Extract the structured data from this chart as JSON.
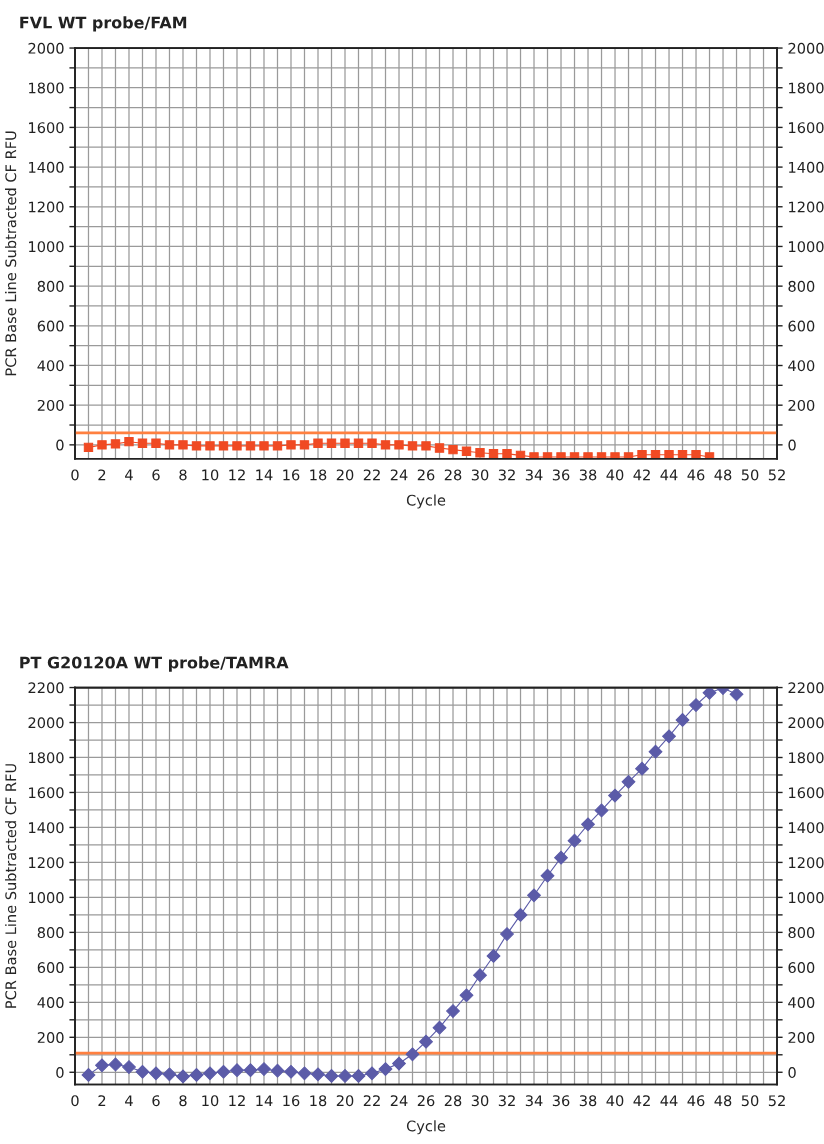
{
  "chart_data": [
    {
      "type": "line",
      "title": "FVL WT probe/FAM",
      "xlabel": "Cycle",
      "ylabel": "PCR Base Line Subtracted CF RFU",
      "x": [
        1,
        2,
        3,
        4,
        5,
        6,
        7,
        8,
        9,
        10,
        11,
        12,
        13,
        14,
        15,
        16,
        17,
        18,
        19,
        20,
        21,
        22,
        23,
        24,
        25,
        26,
        27,
        28,
        29,
        30,
        31,
        32,
        33,
        34,
        35,
        36,
        37,
        38,
        39,
        40,
        41,
        42,
        43,
        44,
        45,
        46,
        47
      ],
      "series": [
        {
          "color": "#f04a23",
          "values": [
            -13,
            0,
            5,
            16,
            8,
            8,
            0,
            0,
            -5,
            -5,
            -5,
            -5,
            -5,
            -5,
            -5,
            0,
            0,
            8,
            8,
            8,
            8,
            8,
            0,
            0,
            -5,
            -5,
            -16,
            -24,
            -32,
            -40,
            -45,
            -45,
            -53,
            -61,
            -61,
            -61,
            -61,
            -61,
            -61,
            -61,
            -61,
            -50,
            -50,
            -50,
            -50,
            -50,
            -61
          ]
        }
      ],
      "marker": "square",
      "line_style": "solid",
      "grid": true,
      "xlim": [
        0,
        52
      ],
      "xticks": [
        0,
        {
          "value": 1,
          "label": null
        },
        2,
        {
          "value": 3,
          "label": null
        },
        4,
        {
          "value": 5,
          "label": null
        },
        6,
        {
          "value": 7,
          "label": null
        },
        8,
        {
          "value": 9,
          "label": null
        },
        10,
        {
          "value": 11,
          "label": null
        },
        12,
        {
          "value": 13,
          "label": null
        },
        14,
        {
          "value": 15,
          "label": null
        },
        16,
        {
          "value": 17,
          "label": null
        },
        18,
        {
          "value": 19,
          "label": null
        },
        20,
        {
          "value": 21,
          "label": null
        },
        22,
        {
          "value": 23,
          "label": null
        },
        24,
        {
          "value": 25,
          "label": null
        },
        26,
        {
          "value": 27,
          "label": null
        },
        28,
        {
          "value": 29,
          "label": null
        },
        30,
        {
          "value": 31,
          "label": null
        },
        32,
        {
          "value": 33,
          "label": null
        },
        34,
        {
          "value": 35,
          "label": null
        },
        36,
        {
          "value": 37,
          "label": null
        },
        38,
        {
          "value": 39,
          "label": null
        },
        40,
        {
          "value": 41,
          "label": null
        },
        42,
        {
          "value": 43,
          "label": null
        },
        44,
        {
          "value": 45,
          "label": null
        },
        46,
        {
          "value": 47,
          "label": null
        },
        48,
        {
          "value": 49,
          "label": null
        },
        50,
        {
          "value": 51,
          "label": null
        },
        52
      ],
      "ylim": [
        -70,
        2000
      ],
      "yticks": [
        0,
        {
          "value": 100,
          "label": null
        },
        200,
        {
          "value": 300,
          "label": null
        },
        400,
        {
          "value": 500,
          "label": null
        },
        600,
        {
          "value": 700,
          "label": null
        },
        800,
        {
          "value": 900,
          "label": null
        },
        1000,
        {
          "value": 1100,
          "label": null
        },
        1200,
        {
          "value": 1300,
          "label": null
        },
        1400,
        {
          "value": 1500,
          "label": null
        },
        1600,
        {
          "value": 1700,
          "label": null
        },
        1800,
        {
          "value": 1900,
          "label": null
        },
        2000
      ],
      "y2lim": [
        -70,
        2000
      ],
      "y2ticks": [
        0,
        {
          "value": 100,
          "label": null
        },
        200,
        {
          "value": 300,
          "label": null
        },
        400,
        {
          "value": 500,
          "label": null
        },
        600,
        {
          "value": 700,
          "label": null
        },
        800,
        {
          "value": 900,
          "label": null
        },
        1000,
        {
          "value": 1100,
          "label": null
        },
        1200,
        {
          "value": 1300,
          "label": null
        },
        1400,
        {
          "value": 1500,
          "label": null
        },
        1600,
        {
          "value": 1700,
          "label": null
        },
        1800,
        {
          "value": 1900,
          "label": null
        },
        2000
      ],
      "ref_lines": [
        {
          "axis": "y",
          "value": 60,
          "color": "#ff8040"
        }
      ]
    },
    {
      "type": "line",
      "title": "PT G20120A WT probe/TAMRA",
      "xlabel": "Cycle",
      "ylabel": "PCR Base Line Subtracted CF RFU",
      "x": [
        1,
        2,
        3,
        4,
        5,
        6,
        7,
        8,
        9,
        10,
        11,
        12,
        13,
        14,
        15,
        16,
        17,
        18,
        19,
        20,
        21,
        22,
        23,
        24,
        25,
        26,
        27,
        28,
        29,
        30,
        31,
        32,
        33,
        34,
        35,
        36,
        37,
        38,
        39,
        40,
        41,
        42,
        43,
        44,
        45,
        46,
        47,
        48,
        49
      ],
      "series": [
        {
          "color": "#5b5ba8",
          "values": [
            -15,
            40,
            45,
            30,
            3,
            -6,
            -12,
            -24,
            -15,
            -6,
            3,
            12,
            12,
            18,
            9,
            3,
            -6,
            -12,
            -21,
            -21,
            -21,
            -6,
            18,
            50,
            103,
            175,
            255,
            350,
            440,
            555,
            665,
            790,
            900,
            1012,
            1124,
            1227,
            1324,
            1418,
            1497,
            1582,
            1661,
            1736,
            1833,
            1921,
            2015,
            2100,
            2170,
            2197,
            2161
          ]
        }
      ],
      "marker": "diamond",
      "line_style": "solid",
      "grid": true,
      "xlim": [
        0,
        52
      ],
      "xticks": [
        0,
        {
          "value": 1,
          "label": null
        },
        2,
        {
          "value": 3,
          "label": null
        },
        4,
        {
          "value": 5,
          "label": null
        },
        6,
        {
          "value": 7,
          "label": null
        },
        8,
        {
          "value": 9,
          "label": null
        },
        10,
        {
          "value": 11,
          "label": null
        },
        12,
        {
          "value": 13,
          "label": null
        },
        14,
        {
          "value": 15,
          "label": null
        },
        16,
        {
          "value": 17,
          "label": null
        },
        18,
        {
          "value": 19,
          "label": null
        },
        20,
        {
          "value": 21,
          "label": null
        },
        22,
        {
          "value": 23,
          "label": null
        },
        24,
        {
          "value": 25,
          "label": null
        },
        26,
        {
          "value": 27,
          "label": null
        },
        28,
        {
          "value": 29,
          "label": null
        },
        30,
        {
          "value": 31,
          "label": null
        },
        32,
        {
          "value": 33,
          "label": null
        },
        34,
        {
          "value": 35,
          "label": null
        },
        36,
        {
          "value": 37,
          "label": null
        },
        38,
        {
          "value": 39,
          "label": null
        },
        40,
        {
          "value": 41,
          "label": null
        },
        42,
        {
          "value": 43,
          "label": null
        },
        44,
        {
          "value": 45,
          "label": null
        },
        46,
        {
          "value": 47,
          "label": null
        },
        48,
        {
          "value": 49,
          "label": null
        },
        50,
        {
          "value": 51,
          "label": null
        },
        52
      ],
      "ylim": [
        -70,
        2200
      ],
      "yticks": [
        0,
        {
          "value": 100,
          "label": null
        },
        200,
        {
          "value": 300,
          "label": null
        },
        400,
        {
          "value": 500,
          "label": null
        },
        600,
        {
          "value": 700,
          "label": null
        },
        800,
        {
          "value": 900,
          "label": null
        },
        1000,
        {
          "value": 1100,
          "label": null
        },
        1200,
        {
          "value": 1300,
          "label": null
        },
        1400,
        {
          "value": 1500,
          "label": null
        },
        1600,
        {
          "value": 1700,
          "label": null
        },
        1800,
        {
          "value": 1900,
          "label": null
        },
        2000,
        {
          "value": 2100,
          "label": null
        },
        2200
      ],
      "y2lim": [
        -70,
        2200
      ],
      "y2ticks": [
        0,
        {
          "value": 100,
          "label": null
        },
        200,
        {
          "value": 300,
          "label": null
        },
        400,
        {
          "value": 500,
          "label": null
        },
        600,
        {
          "value": 700,
          "label": null
        },
        800,
        {
          "value": 900,
          "label": null
        },
        1000,
        {
          "value": 1100,
          "label": null
        },
        1200,
        {
          "value": 1300,
          "label": null
        },
        1400,
        {
          "value": 1500,
          "label": null
        },
        1600,
        {
          "value": 1700,
          "label": null
        },
        1800,
        {
          "value": 1900,
          "label": null
        },
        2000,
        {
          "value": 2100,
          "label": null
        },
        2200
      ],
      "ref_lines": [
        {
          "axis": "y",
          "value": 110,
          "color": "#ff8040"
        }
      ]
    }
  ]
}
